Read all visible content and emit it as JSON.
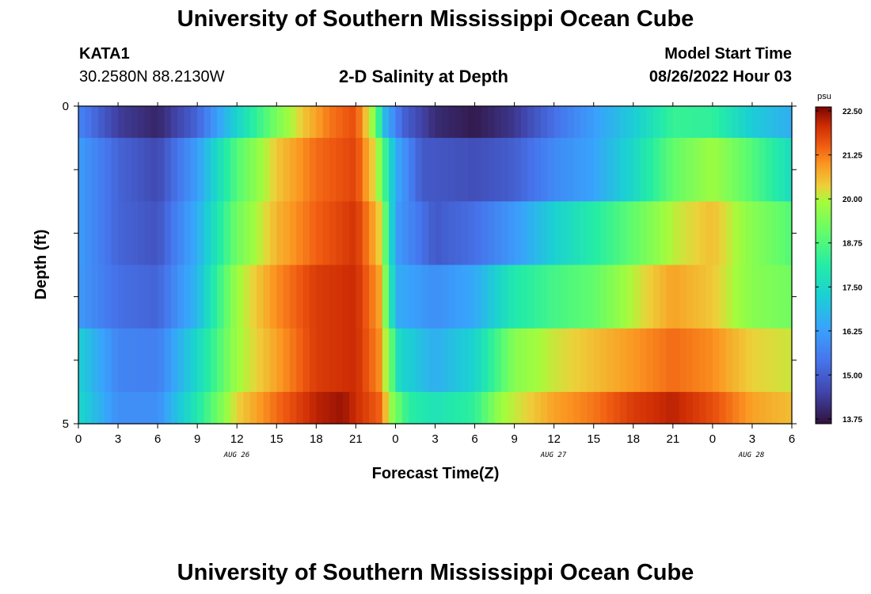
{
  "page": {
    "title": "University of Southern Mississippi Ocean Cube",
    "footer_title": "University of Southern Mississippi Ocean Cube",
    "station_id": "KATA1",
    "station_coords": "30.2580N  88.2130W",
    "plot_title": "2-D Salinity at Depth",
    "model_label": "Model Start Time",
    "model_time": "08/26/2022 Hour 03"
  },
  "chart_data": {
    "type": "heatmap",
    "title": "2-D Salinity at Depth",
    "xlabel": "Forecast Time(Z)",
    "ylabel": "Depth (ft)",
    "x_tick_labels": [
      "0",
      "3",
      "6",
      "9",
      "12",
      "15",
      "18",
      "21",
      "0",
      "3",
      "6",
      "9",
      "12",
      "15",
      "18",
      "21",
      "0",
      "3",
      "6"
    ],
    "date_labels": [
      "AUG 26",
      "AUG 27",
      "AUG 28"
    ],
    "x_hours": [
      0,
      54
    ],
    "y_tick_labels": [
      "0",
      "5"
    ],
    "ylim": [
      0,
      5
    ],
    "colorbar": {
      "unit": "psu",
      "min": 13.75,
      "max": 22.5,
      "tick_labels": [
        "22.50",
        "21.25",
        "20.00",
        "18.75",
        "17.50",
        "16.25",
        "15.00",
        "13.75"
      ]
    },
    "layer_depths_ft": [
      0,
      1,
      2,
      3,
      4,
      5
    ],
    "layers": [
      {
        "depth_range": "0-0.5",
        "keyframes": [
          [
            0,
            15.8
          ],
          [
            3,
            14.5
          ],
          [
            6,
            14.1
          ],
          [
            9,
            15.2
          ],
          [
            12,
            17.4
          ],
          [
            15,
            19.3
          ],
          [
            17,
            20.4
          ],
          [
            19,
            21.2
          ],
          [
            21,
            21.6
          ],
          [
            22.4,
            19.5
          ],
          [
            23.2,
            16.8
          ],
          [
            24.5,
            15.2
          ],
          [
            27,
            14.2
          ],
          [
            30,
            13.9
          ],
          [
            33,
            14.4
          ],
          [
            36,
            15.4
          ],
          [
            39,
            16.3
          ],
          [
            42,
            17.2
          ],
          [
            45,
            18.4
          ],
          [
            48,
            18.3
          ],
          [
            51,
            17.2
          ],
          [
            54,
            16.6
          ]
        ]
      },
      {
        "depth_range": "0.5-1.5",
        "keyframes": [
          [
            0,
            16.3
          ],
          [
            3,
            15.2
          ],
          [
            6,
            14.7
          ],
          [
            9,
            16.3
          ],
          [
            12,
            18.8
          ],
          [
            15,
            20.4
          ],
          [
            18,
            21.3
          ],
          [
            21,
            21.7
          ],
          [
            22.6,
            20.0
          ],
          [
            23.3,
            18.3
          ],
          [
            24,
            16.6
          ],
          [
            26,
            15.0
          ],
          [
            30,
            14.8
          ],
          [
            33,
            15.1
          ],
          [
            36,
            15.9
          ],
          [
            39,
            16.4
          ],
          [
            42,
            17.5
          ],
          [
            45,
            19.0
          ],
          [
            48,
            19.8
          ],
          [
            51,
            18.8
          ],
          [
            54,
            17.6
          ]
        ]
      },
      {
        "depth_range": "1.5-2.5",
        "keyframes": [
          [
            0,
            16.3
          ],
          [
            3,
            15.2
          ],
          [
            6,
            14.9
          ],
          [
            9,
            16.6
          ],
          [
            12,
            19.2
          ],
          [
            15,
            20.6
          ],
          [
            18,
            21.4
          ],
          [
            21,
            21.9
          ],
          [
            22.7,
            20.5
          ],
          [
            23.4,
            18.5
          ],
          [
            24,
            16.3
          ],
          [
            27,
            15.0
          ],
          [
            30,
            15.4
          ],
          [
            33,
            16.2
          ],
          [
            36,
            17.3
          ],
          [
            39,
            18.1
          ],
          [
            42,
            19.0
          ],
          [
            45,
            20.0
          ],
          [
            48,
            20.5
          ],
          [
            51,
            19.5
          ],
          [
            54,
            18.8
          ]
        ]
      },
      {
        "depth_range": "2.5-3.5",
        "keyframes": [
          [
            0,
            16.2
          ],
          [
            3,
            15.4
          ],
          [
            6,
            15.2
          ],
          [
            9,
            16.8
          ],
          [
            12,
            19.8
          ],
          [
            15,
            21.0
          ],
          [
            18,
            21.8
          ],
          [
            21,
            22.0
          ],
          [
            22.8,
            20.8
          ],
          [
            23.5,
            18.6
          ],
          [
            24,
            16.6
          ],
          [
            27,
            16.0
          ],
          [
            30,
            16.5
          ],
          [
            33,
            18.0
          ],
          [
            36,
            18.6
          ],
          [
            39,
            19.0
          ],
          [
            42,
            20.0
          ],
          [
            45,
            20.8
          ],
          [
            48,
            20.4
          ],
          [
            51,
            19.5
          ],
          [
            54,
            19.2
          ]
        ]
      },
      {
        "depth_range": "3.5-4.5",
        "keyframes": [
          [
            0,
            17.3
          ],
          [
            3,
            15.8
          ],
          [
            6,
            15.7
          ],
          [
            9,
            17.5
          ],
          [
            12,
            19.8
          ],
          [
            15,
            20.8
          ],
          [
            18,
            21.8
          ],
          [
            21,
            22.0
          ],
          [
            22.8,
            21.0
          ],
          [
            23.6,
            19.2
          ],
          [
            24.3,
            17.5
          ],
          [
            27,
            16.6
          ],
          [
            30,
            17.4
          ],
          [
            33,
            19.5
          ],
          [
            36,
            20.1
          ],
          [
            39,
            20.5
          ],
          [
            42,
            20.9
          ],
          [
            45,
            21.3
          ],
          [
            48,
            21.0
          ],
          [
            51,
            20.3
          ],
          [
            54,
            20.1
          ]
        ]
      },
      {
        "depth_range": "4.5-5",
        "keyframes": [
          [
            0,
            17.5
          ],
          [
            3,
            16.0
          ],
          [
            6,
            16.0
          ],
          [
            9,
            18.0
          ],
          [
            12,
            20.3
          ],
          [
            15,
            21.3
          ],
          [
            18,
            22.1
          ],
          [
            20,
            22.3
          ],
          [
            22.8,
            21.4
          ],
          [
            23.8,
            19.5
          ],
          [
            25,
            18.2
          ],
          [
            27,
            17.8
          ],
          [
            30,
            18.3
          ],
          [
            32,
            19.8
          ],
          [
            36,
            20.8
          ],
          [
            39,
            21.2
          ],
          [
            42,
            21.8
          ],
          [
            45,
            22.1
          ],
          [
            48,
            21.6
          ],
          [
            51,
            20.8
          ],
          [
            54,
            20.5
          ]
        ]
      }
    ]
  }
}
